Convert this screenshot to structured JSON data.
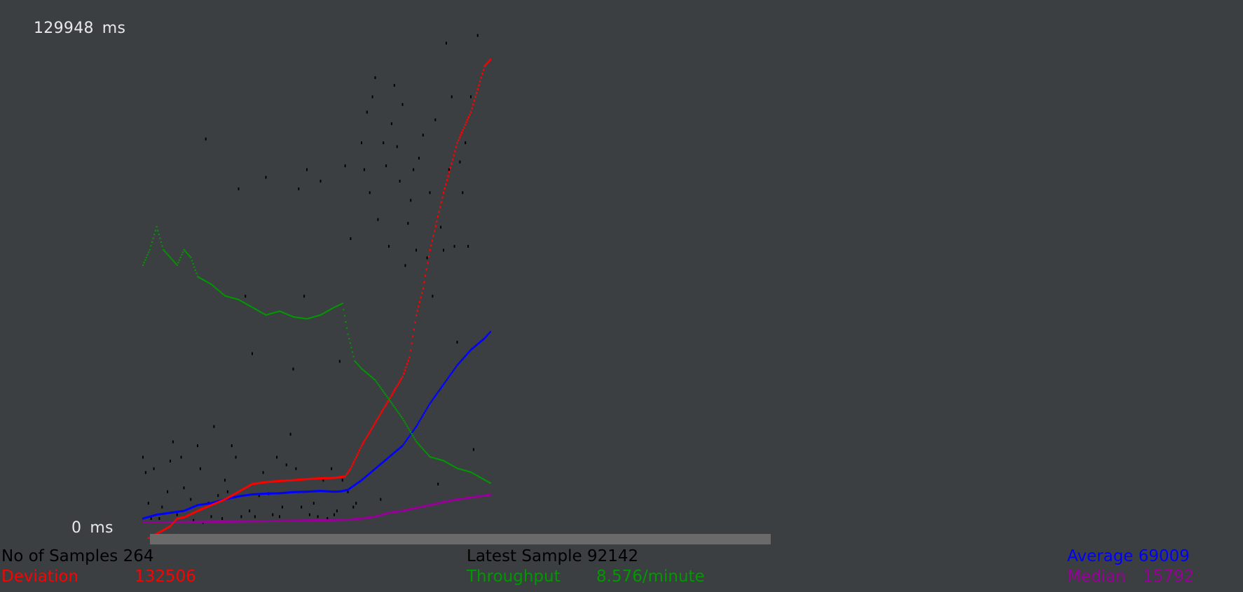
{
  "chart_data": {
    "type": "scatter",
    "y_max_label": "129948",
    "y_min_label": "0",
    "y_unit": "ms",
    "ylim": [
      0,
      129948
    ],
    "series": [
      {
        "name": "Data",
        "color": "#000000",
        "style": "points"
      },
      {
        "name": "Average",
        "color": "#0000ff",
        "style": "line"
      },
      {
        "name": "Median",
        "color": "#990099",
        "style": "line"
      },
      {
        "name": "Deviation",
        "color": "#ff0000",
        "style": "line"
      },
      {
        "name": "Throughput",
        "color": "#009900",
        "style": "line"
      }
    ],
    "points": {
      "Average": [
        [
          0,
          2000
        ],
        [
          10,
          3000
        ],
        [
          20,
          3500
        ],
        [
          30,
          4000
        ],
        [
          40,
          5500
        ],
        [
          50,
          6000
        ],
        [
          60,
          7000
        ],
        [
          70,
          7800
        ],
        [
          80,
          8300
        ],
        [
          90,
          8500
        ],
        [
          100,
          8600
        ],
        [
          110,
          8900
        ],
        [
          120,
          9000
        ],
        [
          130,
          9200
        ],
        [
          140,
          9000
        ],
        [
          145,
          9100
        ],
        [
          150,
          9500
        ],
        [
          160,
          12000
        ],
        [
          170,
          15000
        ],
        [
          180,
          18000
        ],
        [
          190,
          21000
        ],
        [
          200,
          26000
        ],
        [
          210,
          32000
        ],
        [
          220,
          37000
        ],
        [
          230,
          42000
        ],
        [
          240,
          46000
        ],
        [
          250,
          49000
        ],
        [
          255,
          51000
        ]
      ],
      "Median": [
        [
          0,
          1000
        ],
        [
          20,
          1000
        ],
        [
          40,
          1100
        ],
        [
          60,
          1200
        ],
        [
          80,
          1300
        ],
        [
          100,
          1400
        ],
        [
          120,
          1500
        ],
        [
          140,
          1600
        ],
        [
          150,
          1700
        ],
        [
          160,
          2000
        ],
        [
          170,
          2500
        ],
        [
          180,
          3500
        ],
        [
          190,
          4000
        ],
        [
          200,
          4800
        ],
        [
          210,
          5500
        ],
        [
          220,
          6300
        ],
        [
          230,
          7000
        ],
        [
          240,
          7500
        ],
        [
          250,
          8000
        ],
        [
          255,
          8200
        ]
      ],
      "Deviation": [
        [
          0,
          -4000
        ],
        [
          5,
          -3000
        ],
        [
          10,
          -2000
        ],
        [
          15,
          -1000
        ],
        [
          20,
          0
        ],
        [
          25,
          2000
        ],
        [
          30,
          2300
        ],
        [
          40,
          4000
        ],
        [
          50,
          5500
        ],
        [
          60,
          7000
        ],
        [
          70,
          9000
        ],
        [
          80,
          11000
        ],
        [
          90,
          11500
        ],
        [
          100,
          11800
        ],
        [
          110,
          12000
        ],
        [
          120,
          12300
        ],
        [
          130,
          12500
        ],
        [
          140,
          12600
        ],
        [
          148,
          13000
        ],
        [
          152,
          15000
        ],
        [
          160,
          21000
        ],
        [
          170,
          27000
        ],
        [
          180,
          33000
        ],
        [
          190,
          39000
        ],
        [
          195,
          44000
        ],
        [
          200,
          55000
        ],
        [
          205,
          62000
        ],
        [
          210,
          72000
        ],
        [
          220,
          87000
        ],
        [
          230,
          100000
        ],
        [
          240,
          108000
        ],
        [
          250,
          120000
        ],
        [
          255,
          122000
        ]
      ],
      "Throughput": [
        [
          0,
          68000
        ],
        [
          5,
          72000
        ],
        [
          10,
          78000
        ],
        [
          15,
          72000
        ],
        [
          20,
          70000
        ],
        [
          25,
          68000
        ],
        [
          30,
          72000
        ],
        [
          35,
          70000
        ],
        [
          40,
          65000
        ],
        [
          50,
          63000
        ],
        [
          60,
          60000
        ],
        [
          70,
          59000
        ],
        [
          80,
          57000
        ],
        [
          90,
          55000
        ],
        [
          100,
          56000
        ],
        [
          110,
          54500
        ],
        [
          120,
          54000
        ],
        [
          130,
          55000
        ],
        [
          140,
          57000
        ],
        [
          146,
          58000
        ],
        [
          150,
          50000
        ],
        [
          155,
          43000
        ],
        [
          160,
          41000
        ],
        [
          170,
          38000
        ],
        [
          180,
          33000
        ],
        [
          190,
          28000
        ],
        [
          200,
          22000
        ],
        [
          210,
          18000
        ],
        [
          220,
          17000
        ],
        [
          230,
          15000
        ],
        [
          240,
          14000
        ],
        [
          250,
          12000
        ],
        [
          255,
          11000
        ]
      ],
      "Data": [
        [
          0,
          18000
        ],
        [
          2,
          14000
        ],
        [
          4,
          6000
        ],
        [
          6,
          2000
        ],
        [
          8,
          15000
        ],
        [
          12,
          2000
        ],
        [
          14,
          5000
        ],
        [
          18,
          9000
        ],
        [
          20,
          17000
        ],
        [
          22,
          22000
        ],
        [
          25,
          3000
        ],
        [
          28,
          18000
        ],
        [
          30,
          10000
        ],
        [
          35,
          7000
        ],
        [
          37,
          1500
        ],
        [
          40,
          21000
        ],
        [
          42,
          15000
        ],
        [
          44,
          1000
        ],
        [
          46,
          101000
        ],
        [
          48,
          6000
        ],
        [
          50,
          2500
        ],
        [
          52,
          26000
        ],
        [
          55,
          8000
        ],
        [
          58,
          2000
        ],
        [
          60,
          12000
        ],
        [
          62,
          9000
        ],
        [
          65,
          21000
        ],
        [
          68,
          18000
        ],
        [
          70,
          88000
        ],
        [
          72,
          2500
        ],
        [
          75,
          60000
        ],
        [
          78,
          4000
        ],
        [
          80,
          45000
        ],
        [
          82,
          2500
        ],
        [
          85,
          8000
        ],
        [
          88,
          14000
        ],
        [
          90,
          91000
        ],
        [
          92,
          8500
        ],
        [
          95,
          3000
        ],
        [
          98,
          18000
        ],
        [
          100,
          2500
        ],
        [
          102,
          5000
        ],
        [
          105,
          16000
        ],
        [
          108,
          24000
        ],
        [
          110,
          41000
        ],
        [
          112,
          15000
        ],
        [
          114,
          88000
        ],
        [
          116,
          5000
        ],
        [
          118,
          60000
        ],
        [
          120,
          93000
        ],
        [
          122,
          3000
        ],
        [
          125,
          6000
        ],
        [
          128,
          2500
        ],
        [
          130,
          90000
        ],
        [
          132,
          12000
        ],
        [
          135,
          2000
        ],
        [
          138,
          15000
        ],
        [
          140,
          3000
        ],
        [
          142,
          4000
        ],
        [
          144,
          43000
        ],
        [
          146,
          12000
        ],
        [
          148,
          94000
        ],
        [
          150,
          9000
        ],
        [
          152,
          75000
        ],
        [
          154,
          5000
        ],
        [
          156,
          6000
        ],
        [
          160,
          100000
        ],
        [
          162,
          93000
        ],
        [
          164,
          108000
        ],
        [
          166,
          87000
        ],
        [
          168,
          112000
        ],
        [
          170,
          117000
        ],
        [
          172,
          80000
        ],
        [
          174,
          7000
        ],
        [
          176,
          100000
        ],
        [
          178,
          94000
        ],
        [
          180,
          73000
        ],
        [
          182,
          105000
        ],
        [
          184,
          115000
        ],
        [
          186,
          99000
        ],
        [
          188,
          90000
        ],
        [
          190,
          110000
        ],
        [
          192,
          68000
        ],
        [
          194,
          79000
        ],
        [
          196,
          85000
        ],
        [
          198,
          93000
        ],
        [
          200,
          72000
        ],
        [
          202,
          96000
        ],
        [
          205,
          102000
        ],
        [
          208,
          70000
        ],
        [
          210,
          87000
        ],
        [
          212,
          60000
        ],
        [
          214,
          106000
        ],
        [
          216,
          11000
        ],
        [
          218,
          78000
        ],
        [
          220,
          72000
        ],
        [
          222,
          126000
        ],
        [
          224,
          93000
        ],
        [
          226,
          112000
        ],
        [
          228,
          73000
        ],
        [
          230,
          48000
        ],
        [
          232,
          95000
        ],
        [
          234,
          87000
        ],
        [
          236,
          100000
        ],
        [
          238,
          73000
        ],
        [
          240,
          112000
        ],
        [
          242,
          20000
        ],
        [
          245,
          128000
        ]
      ]
    }
  },
  "stats": {
    "samples_label": "No of Samples",
    "samples_value": "264",
    "deviation_label": "Deviation",
    "deviation_value": "132506",
    "latest_label": "Latest Sample",
    "latest_value": "92142",
    "throughput_label": "Throughput",
    "throughput_value": "8.576/minute",
    "average_label": "Average",
    "average_value": "69009",
    "median_label": "Median",
    "median_value": "15792"
  },
  "colors": {
    "background": "#3c3f41",
    "stat_default": "#000000",
    "deviation": "#ff0000",
    "throughput": "#009900",
    "average": "#0000ff",
    "median": "#990099"
  }
}
